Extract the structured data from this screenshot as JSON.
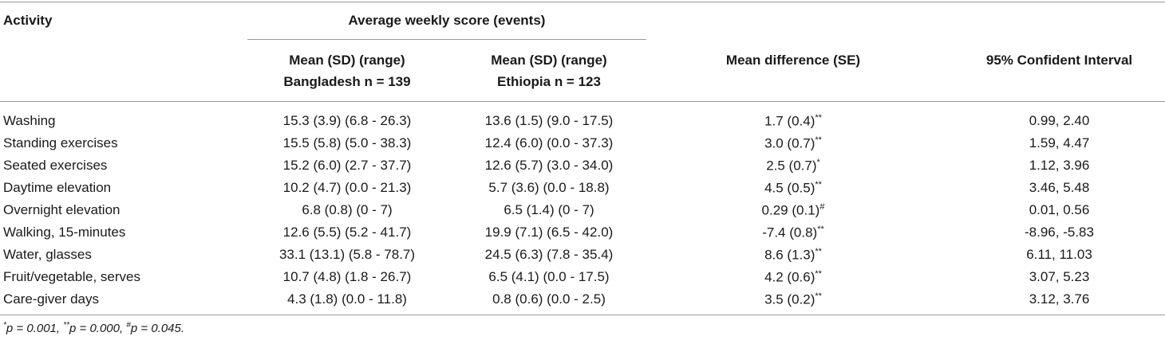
{
  "headers": {
    "activity": "Activity",
    "group": "Average weekly score (events)",
    "bangladesh_line1": "Mean (SD) (range)",
    "bangladesh_line2": "Bangladesh n = 139",
    "ethiopia_line1": "Mean (SD) (range)",
    "ethiopia_line2": "Ethiopia n = 123",
    "mean_diff": "Mean difference (SE)",
    "ci": "95% Confident Interval"
  },
  "rows": [
    {
      "activity": "Washing",
      "bangladesh": "15.3 (3.9) (6.8 - 26.3)",
      "ethiopia": "13.6 (1.5) (9.0 - 17.5)",
      "diff": "1.7 (0.4)",
      "sig": "**",
      "ci": "0.99, 2.40"
    },
    {
      "activity": "Standing exercises",
      "bangladesh": "15.5 (5.8) (5.0 - 38.3)",
      "ethiopia": "12.4 (6.0) (0.0 - 37.3)",
      "diff": "3.0 (0.7)",
      "sig": "**",
      "ci": "1.59, 4.47"
    },
    {
      "activity": "Seated exercises",
      "bangladesh": "15.2 (6.0) (2.7 - 37.7)",
      "ethiopia": "12.6 (5.7) (3.0 - 34.0)",
      "diff": "2.5 (0.7)",
      "sig": "*",
      "ci": "1.12, 3.96"
    },
    {
      "activity": "Daytime elevation",
      "bangladesh": "10.2 (4.7) (0.0 - 21.3)",
      "ethiopia": "5.7 (3.6) (0.0 - 18.8)",
      "diff": "4.5 (0.5)",
      "sig": "**",
      "ci": "3.46, 5.48"
    },
    {
      "activity": "Overnight elevation",
      "bangladesh": "6.8 (0.8) (0 - 7)",
      "ethiopia": "6.5 (1.4) (0 - 7)",
      "diff": "0.29 (0.1)",
      "sig": "#",
      "ci": "0.01, 0.56"
    },
    {
      "activity": "Walking, 15-minutes",
      "bangladesh": "12.6 (5.5) (5.2 - 41.7)",
      "ethiopia": "19.9 (7.1) (6.5 - 42.0)",
      "diff": "-7.4 (0.8)",
      "sig": "**",
      "ci": "-8.96, -5.83"
    },
    {
      "activity": "Water, glasses",
      "bangladesh": "33.1 (13.1) (5.8 - 78.7)",
      "ethiopia": "24.5 (6.3) (7.8 - 35.4)",
      "diff": "8.6 (1.3)",
      "sig": "**",
      "ci": "6.11, 11.03"
    },
    {
      "activity": "Fruit/vegetable, serves",
      "bangladesh": "10.7 (4.8) (1.8 - 26.7)",
      "ethiopia": "6.5 (4.1) (0.0 - 17.5)",
      "diff": "4.2 (0.6)",
      "sig": "**",
      "ci": "3.07, 5.23"
    },
    {
      "activity": "Care-giver days",
      "bangladesh": "4.3 (1.8) (0.0 - 11.8)",
      "ethiopia": "0.8 (0.6) (0.0 - 2.5)",
      "diff": "3.5 (0.2)",
      "sig": "**",
      "ci": "3.12, 3.76"
    }
  ],
  "footnote": {
    "s1": "*",
    "t1": "p = 0.001, ",
    "s2": "**",
    "t2": "p = 0.000, ",
    "s3": "#",
    "t3": "p = 0.045."
  }
}
